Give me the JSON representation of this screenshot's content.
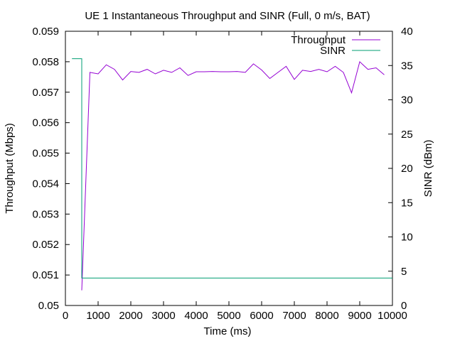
{
  "chart_data": {
    "type": "line",
    "title": "UE 1 Instantaneous Throughput and SINR (Full, 0 m/s, BAT)",
    "xlabel": "Time (ms)",
    "ylabel": "Throughput (Mbps)",
    "y2label": "SINR (dBm)",
    "xlim": [
      0,
      10000
    ],
    "ylim": [
      0.05,
      0.059
    ],
    "y2lim": [
      0,
      40
    ],
    "x_ticks": [
      0,
      1000,
      2000,
      3000,
      4000,
      5000,
      6000,
      7000,
      8000,
      9000,
      10000
    ],
    "y_ticks": [
      0.05,
      0.051,
      0.052,
      0.053,
      0.054,
      0.055,
      0.056,
      0.057,
      0.058,
      0.059
    ],
    "y2_ticks": [
      0,
      5,
      10,
      15,
      20,
      25,
      30,
      35,
      40
    ],
    "x_tick_labels": [
      "0",
      "1000",
      "2000",
      "3000",
      "4000",
      "5000",
      "6000",
      "7000",
      "8000",
      "9000",
      "10000"
    ],
    "y_tick_labels": [
      "0.05",
      "0.051",
      "0.052",
      "0.053",
      "0.054",
      "0.055",
      "0.056",
      "0.057",
      "0.058",
      "0.059"
    ],
    "y2_tick_labels": [
      "0",
      "5",
      "10",
      "15",
      "20",
      "25",
      "30",
      "35",
      "40"
    ],
    "grid": false,
    "legend_position": "top-right",
    "series": [
      {
        "name": "Throughput",
        "axis": "y",
        "color": "#9400d3",
        "x": [
          500,
          750,
          1000,
          1250,
          1500,
          1750,
          2000,
          2250,
          2500,
          2750,
          3000,
          3250,
          3500,
          3750,
          4000,
          4250,
          4500,
          4750,
          5000,
          5250,
          5500,
          5750,
          6000,
          6250,
          6500,
          6750,
          7000,
          7250,
          7500,
          7750,
          8000,
          8250,
          8500,
          8750,
          9000,
          9250,
          9500,
          9750
        ],
        "y": [
          0.0505,
          0.05765,
          0.0576,
          0.0579,
          0.05775,
          0.0574,
          0.05768,
          0.05765,
          0.05775,
          0.0576,
          0.05772,
          0.05765,
          0.0578,
          0.05755,
          0.05767,
          0.05767,
          0.05768,
          0.05767,
          0.05767,
          0.05768,
          0.05765,
          0.05793,
          0.05773,
          0.05745,
          0.05765,
          0.05785,
          0.05742,
          0.05772,
          0.05768,
          0.05775,
          0.05767,
          0.05785,
          0.05765,
          0.05698,
          0.058,
          0.05775,
          0.0578,
          0.05757
        ]
      },
      {
        "name": "SINR",
        "axis": "y2",
        "color": "#009e73",
        "step": true,
        "x": [
          200,
          500,
          500,
          10000
        ],
        "y": [
          36,
          36,
          4,
          4
        ]
      }
    ]
  }
}
